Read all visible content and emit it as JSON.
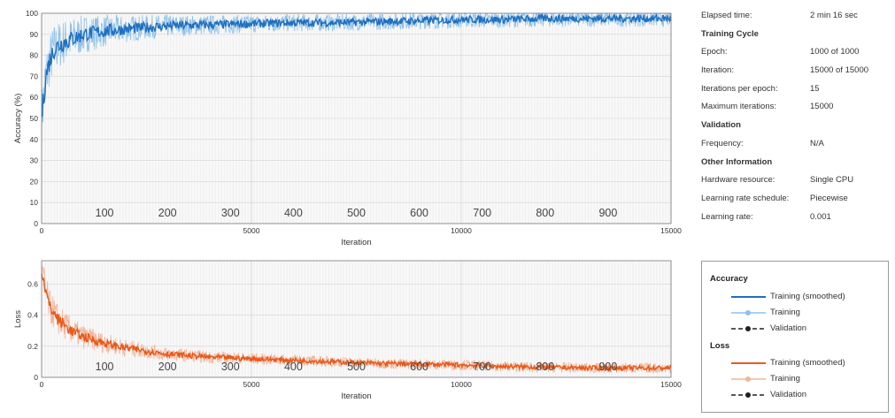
{
  "chart_data": [
    {
      "type": "line",
      "title": "",
      "xlabel": "Iteration",
      "ylabel": "Accuracy (%)",
      "xlim": [
        0,
        15000
      ],
      "ylim": [
        0,
        100
      ],
      "x_ticks": [
        "0",
        "5000",
        "10000",
        "15000"
      ],
      "y_ticks": [
        "0",
        "10",
        "20",
        "30",
        "40",
        "50",
        "60",
        "70",
        "80",
        "90",
        "100"
      ],
      "epoch_labels": [
        "100",
        "200",
        "300",
        "400",
        "500",
        "600",
        "700",
        "800",
        "900"
      ],
      "grid": true,
      "series": [
        {
          "name": "Training (smoothed)",
          "color": "#1f6fc0",
          "x": [
            0,
            100,
            200,
            300,
            500,
            750,
            1000,
            1500,
            2000,
            3000,
            4000,
            5000,
            6000,
            7000,
            8000,
            9000,
            10000,
            11000,
            12000,
            13000,
            14000,
            15000
          ],
          "y": [
            50,
            70,
            78,
            83,
            86,
            88,
            90,
            91.5,
            92.5,
            94,
            94.5,
            95,
            95.5,
            95.5,
            96,
            96.5,
            97,
            97,
            97.5,
            97.5,
            97.5,
            97.5
          ]
        },
        {
          "name": "Training",
          "color": "#8fc1e8",
          "x": [
            0,
            15000
          ],
          "y": [
            45,
            98
          ]
        }
      ]
    },
    {
      "type": "line",
      "title": "",
      "xlabel": "Iteration",
      "ylabel": "Loss",
      "xlim": [
        0,
        15000
      ],
      "ylim": [
        0,
        0.75
      ],
      "x_ticks": [
        "0",
        "5000",
        "10000",
        "15000"
      ],
      "y_ticks": [
        "0",
        "0.2",
        "0.4",
        "0.6"
      ],
      "epoch_labels": [
        "100",
        "200",
        "300",
        "400",
        "500",
        "600",
        "700",
        "800",
        "900"
      ],
      "grid": true,
      "series": [
        {
          "name": "Training (smoothed)",
          "color": "#e8591a",
          "x": [
            0,
            100,
            200,
            400,
            700,
            1000,
            1500,
            2000,
            3000,
            4000,
            5000,
            6000,
            7000,
            8000,
            9000,
            10000,
            11000,
            12000,
            13000,
            14000,
            15000
          ],
          "y": [
            0.7,
            0.55,
            0.45,
            0.37,
            0.3,
            0.26,
            0.22,
            0.19,
            0.15,
            0.13,
            0.12,
            0.11,
            0.1,
            0.09,
            0.085,
            0.08,
            0.07,
            0.065,
            0.06,
            0.06,
            0.06
          ]
        },
        {
          "name": "Training",
          "color": "#f2b49a",
          "x": [
            0,
            15000
          ],
          "y": [
            0.7,
            0.06
          ]
        }
      ]
    }
  ],
  "info": {
    "elapsed_label": "Elapsed time:",
    "elapsed_value": "2 min 16 sec",
    "training_cycle_heading": "Training Cycle",
    "epoch_label": "Epoch:",
    "epoch_value": "1000 of 1000",
    "iteration_label": "Iteration:",
    "iteration_value": "15000 of 15000",
    "iter_per_epoch_label": "Iterations per epoch:",
    "iter_per_epoch_value": "15",
    "max_iter_label": "Maximum iterations:",
    "max_iter_value": "15000",
    "validation_heading": "Validation",
    "frequency_label": "Frequency:",
    "frequency_value": "N/A",
    "other_heading": "Other Information",
    "hardware_label": "Hardware resource:",
    "hardware_value": "Single CPU",
    "lr_schedule_label": "Learning rate schedule:",
    "lr_schedule_value": "Piecewise",
    "lr_label": "Learning rate:",
    "lr_value": "0.001"
  },
  "legend": {
    "accuracy_heading": "Accuracy",
    "loss_heading": "Loss",
    "acc_smoothed": "Training (smoothed)",
    "acc_training": "Training",
    "acc_validation": "Validation",
    "loss_smoothed": "Training (smoothed)",
    "loss_training": "Training",
    "loss_validation": "Validation",
    "colors": {
      "acc_smoothed": "#1f6fc0",
      "acc_training": "#8fc1e8",
      "loss_smoothed": "#e8591a",
      "loss_training": "#f2b49a",
      "validation": "#222222"
    }
  }
}
